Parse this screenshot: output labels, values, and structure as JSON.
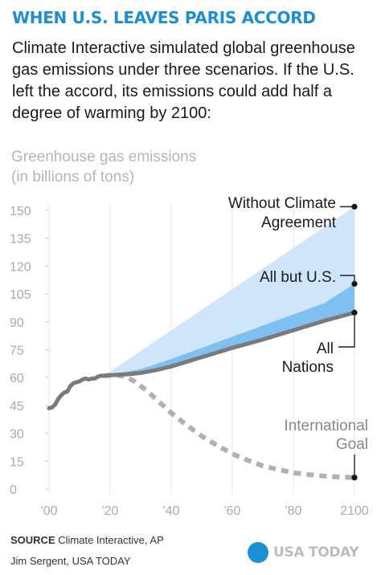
{
  "headline": "WHEN U.S. LEAVES PARIS ACCORD",
  "intro": "Climate Interactive simulated global greenhouse gas emissions under three scenarios. If the U.S. left the accord, its emissions could add half a degree of warming by 2100:",
  "chart_data": {
    "type": "area",
    "ylabel_line1": "Greenhouse gas emissions",
    "ylabel_line2": "(in billions of tons)",
    "ylim": [
      0,
      150
    ],
    "xlim": [
      2000,
      2100
    ],
    "yticks": [
      0,
      15,
      30,
      45,
      60,
      75,
      90,
      105,
      120,
      135,
      150
    ],
    "xticks": [
      {
        "value": 2000,
        "label": "'00"
      },
      {
        "value": 2020,
        "label": "'20"
      },
      {
        "value": 2040,
        "label": "'40"
      },
      {
        "value": 2060,
        "label": "'60"
      },
      {
        "value": 2080,
        "label": "'80"
      },
      {
        "value": 2100,
        "label": "2100"
      }
    ],
    "grid": "vertical",
    "historical": {
      "x": [
        2000,
        2001,
        2002,
        2003,
        2004,
        2005,
        2006,
        2007,
        2008,
        2009,
        2010,
        2011,
        2012,
        2013,
        2014,
        2015,
        2016,
        2017,
        2018
      ],
      "y": [
        43.5,
        44,
        45.5,
        48.5,
        50.5,
        52,
        52.5,
        55.5,
        57,
        57.5,
        58,
        59,
        59.5,
        59,
        59.5,
        59.5,
        60.5,
        61,
        61
      ]
    },
    "series": [
      {
        "name": "Without Climate Agreement",
        "label_line1": "Without Climate",
        "label_line2": "Agreement",
        "x": [
          2018,
          2100
        ],
        "y": [
          61,
          152
        ],
        "color": "#cfe6fa"
      },
      {
        "name": "All but U.S.",
        "label_line1": "All but U.S.",
        "x": [
          2018,
          2030,
          2040,
          2050,
          2060,
          2070,
          2080,
          2090,
          2100
        ],
        "y": [
          61,
          64.5,
          70,
          76,
          82,
          88,
          94,
          100,
          110.5
        ],
        "color": "#7fc0f2"
      },
      {
        "name": "All Nations",
        "label_line1": "All",
        "label_line2": "Nations",
        "x": [
          2018,
          2022,
          2026,
          2030,
          2035,
          2040,
          2050,
          2060,
          2070,
          2080,
          2090,
          2100
        ],
        "y": [
          61,
          61.5,
          61.8,
          62.5,
          64,
          66,
          71,
          76,
          80.5,
          85.5,
          90.5,
          95
        ],
        "color": "#7a7a7a"
      },
      {
        "name": "International Goal",
        "label_line1": "International",
        "label_line2": "Goal",
        "x": [
          2018,
          2022,
          2025,
          2028,
          2032,
          2036,
          2040,
          2045,
          2050,
          2055,
          2060,
          2065,
          2070,
          2075,
          2080,
          2085,
          2090,
          2095,
          2100
        ],
        "y": [
          61,
          61.5,
          60.5,
          58,
          53,
          47,
          41,
          34.5,
          28.5,
          23.5,
          19,
          15.5,
          12.5,
          10.5,
          8.8,
          7.8,
          7,
          6.5,
          6.2
        ],
        "color": "#b0b0b0",
        "dashed": true
      }
    ]
  },
  "footer": {
    "source_label": "SOURCE",
    "source_text": " Climate Interactive, AP",
    "credit": "Jim Sergent, USA TODAY"
  },
  "logo": {
    "text": "USA TODAY",
    "color": "#1a8fd6"
  }
}
